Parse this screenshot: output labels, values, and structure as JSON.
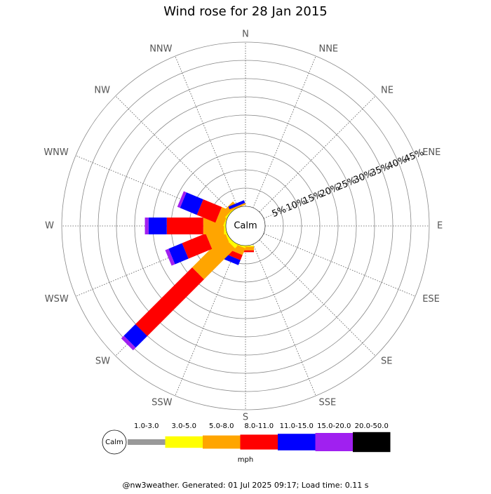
{
  "chart_data": {
    "type": "windrose",
    "title": "Wind rose for 28 Jan 2015",
    "categories": [
      "N",
      "NNE",
      "NE",
      "ENE",
      "E",
      "ESE",
      "SE",
      "SSE",
      "S",
      "SSW",
      "SW",
      "WSW",
      "W",
      "WNW",
      "NW",
      "NNW"
    ],
    "rlim": [
      0,
      45
    ],
    "rticks": [
      {
        "value": 5,
        "label": "5%"
      },
      {
        "value": 10,
        "label": "10%"
      },
      {
        "value": 15,
        "label": "15%"
      },
      {
        "value": 20,
        "label": "20%"
      },
      {
        "value": 25,
        "label": "25%"
      },
      {
        "value": 30,
        "label": "30%"
      },
      {
        "value": 35,
        "label": "35%"
      },
      {
        "value": 40,
        "label": "40%"
      },
      {
        "value": 45,
        "label": "45%"
      }
    ],
    "calm_label": "Calm",
    "units_label": "mph",
    "series": [
      {
        "name": "1.0-3.0",
        "color": "#999999",
        "values": [
          0,
          0,
          0,
          0,
          0,
          0,
          0,
          0,
          0,
          0,
          0,
          0,
          0,
          0,
          0,
          0
        ]
      },
      {
        "name": "3.0-5.0",
        "color": "#ffff00",
        "values": [
          0,
          0,
          0,
          0,
          0,
          0,
          0,
          0,
          0.3,
          0.3,
          1,
          0.5,
          0.5,
          0.3,
          0.3,
          0
        ]
      },
      {
        "name": "5.0-8.0",
        "color": "#ffa500",
        "values": [
          0,
          0,
          0,
          0,
          0,
          0,
          0,
          0,
          1,
          2,
          12,
          5,
          5.7,
          2.3,
          1.5,
          0.5
        ]
      },
      {
        "name": "8.0-11.0",
        "color": "#ff0000",
        "values": [
          0,
          0,
          0,
          0,
          0,
          0,
          0,
          0,
          0.5,
          1.5,
          22,
          7,
          10,
          5.5,
          0,
          0
        ]
      },
      {
        "name": "11.0-15.0",
        "color": "#0000ff",
        "values": [
          0,
          0,
          0,
          0,
          0,
          0,
          0,
          0,
          0,
          1.5,
          4.5,
          4,
          5,
          5,
          0,
          0.8
        ]
      },
      {
        "name": "15.0-20.0",
        "color": "#a020f0",
        "values": [
          0,
          0,
          0,
          0,
          0,
          0,
          0,
          0,
          0,
          0,
          1,
          1,
          1,
          0.8,
          0,
          0
        ]
      },
      {
        "name": "20.0-50.0",
        "color": "#000000",
        "values": [
          0,
          0,
          0,
          0,
          0,
          0,
          0,
          0,
          0,
          0,
          0,
          0,
          0,
          0,
          0,
          0
        ]
      }
    ]
  },
  "footer": "@nw3weather. Generated: 01 Jul 2025 09:17; Load time: 0.11 s"
}
